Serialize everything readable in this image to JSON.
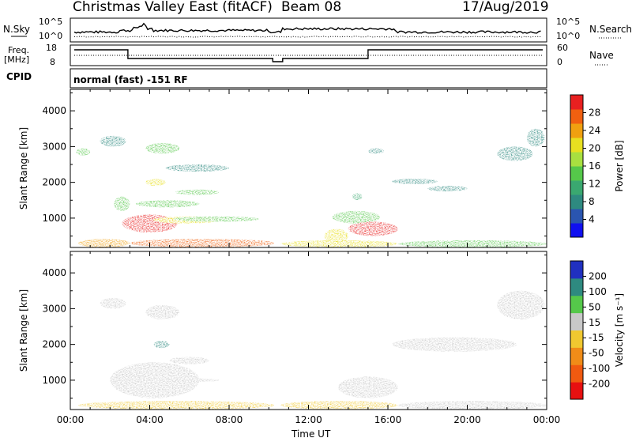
{
  "header": {
    "title": "Christmas Valley East (fitACF)",
    "beam": "Beam 08",
    "date": "17/Aug/2019"
  },
  "top_panels": {
    "nsky_label": "N.Sky",
    "nsearch_label": "N.Search",
    "nsky_ticks": [
      "10^5",
      "10^0"
    ],
    "nsearch_ticks": [
      "10^5",
      "10^0"
    ],
    "freq_label_1": "Freq.",
    "freq_label_2": "[MHz]",
    "freq_ticks": [
      "18",
      "8"
    ],
    "nave_label": "Nave",
    "nave_ticks": [
      "60",
      "0"
    ],
    "cpid_label": "CPID",
    "cpid_value": "normal (fast) -151 RF"
  },
  "colorbars": {
    "power": {
      "label": "Power [dB]",
      "ticks": [
        "28",
        "24",
        "20",
        "16",
        "12",
        "8",
        "4"
      ],
      "colors": [
        "#1010f0",
        "#2a55b0",
        "#2e8a80",
        "#3aa870",
        "#55c84a",
        "#a8e040",
        "#e8e020",
        "#f0a010",
        "#f06010",
        "#e82020"
      ]
    },
    "velocity": {
      "label": "Velocity [m s⁻¹]",
      "ticks": [
        "200",
        "100",
        "50",
        "15",
        "-15",
        "-50",
        "-100",
        "-200"
      ],
      "colors": [
        "#2030c0",
        "#2e8a80",
        "#55c84a",
        "#c8c8c8",
        "#f0c830",
        "#f08c18",
        "#f05a10",
        "#e81010"
      ]
    }
  },
  "chart_data": [
    {
      "type": "heatmap",
      "name": "power",
      "ylabel": "Slant Range [km]",
      "y_ticks": [
        "1000",
        "2000",
        "3000",
        "4000"
      ],
      "ylim": [
        180,
        4600
      ],
      "xlim": [
        0,
        24
      ],
      "x_ticks": [
        "00:00",
        "04:00",
        "08:00",
        "12:00",
        "16:00",
        "20:00",
        "00:00"
      ],
      "colorbar_range": [
        0,
        30
      ],
      "regions": [
        {
          "t": [
            0.4,
            3.0
          ],
          "r": [
            180,
            420
          ],
          "value": 22
        },
        {
          "t": [
            3.0,
            10.3
          ],
          "r": [
            180,
            420
          ],
          "value": 26
        },
        {
          "t": [
            10.6,
            16.5
          ],
          "r": [
            180,
            380
          ],
          "value": 20
        },
        {
          "t": [
            16.5,
            24.0
          ],
          "r": [
            180,
            380
          ],
          "value": 14
        },
        {
          "t": [
            2.6,
            5.4
          ],
          "r": [
            600,
            1100
          ],
          "value": 28
        },
        {
          "t": [
            2.2,
            3.0
          ],
          "r": [
            1200,
            1600
          ],
          "value": 14
        },
        {
          "t": [
            3.3,
            6.5
          ],
          "r": [
            1300,
            1500
          ],
          "value": 12
        },
        {
          "t": [
            4.2,
            7.5
          ],
          "r": [
            850,
            1050
          ],
          "value": 18
        },
        {
          "t": [
            5.2,
            9.5
          ],
          "r": [
            900,
            1050
          ],
          "value": 14
        },
        {
          "t": [
            3.8,
            4.8
          ],
          "r": [
            1900,
            2100
          ],
          "value": 18
        },
        {
          "t": [
            5.3,
            7.5
          ],
          "r": [
            1650,
            1800
          ],
          "value": 12
        },
        {
          "t": [
            1.5,
            2.8
          ],
          "r": [
            3000,
            3300
          ],
          "value": 8
        },
        {
          "t": [
            3.8,
            5.5
          ],
          "r": [
            2800,
            3100
          ],
          "value": 12
        },
        {
          "t": [
            4.8,
            8.0
          ],
          "r": [
            2300,
            2500
          ],
          "value": 8
        },
        {
          "t": [
            0.3,
            1.0
          ],
          "r": [
            2750,
            2950
          ],
          "value": 12
        },
        {
          "t": [
            13.2,
            15.6
          ],
          "r": [
            850,
            1200
          ],
          "value": 14
        },
        {
          "t": [
            14.0,
            16.5
          ],
          "r": [
            500,
            900
          ],
          "value": 28
        },
        {
          "t": [
            12.8,
            14.0
          ],
          "r": [
            300,
            700
          ],
          "value": 20
        },
        {
          "t": [
            14.2,
            14.7
          ],
          "r": [
            1500,
            1700
          ],
          "value": 10
        },
        {
          "t": [
            15.0,
            15.8
          ],
          "r": [
            2800,
            2950
          ],
          "value": 8
        },
        {
          "t": [
            16.2,
            18.5
          ],
          "r": [
            1950,
            2100
          ],
          "value": 8
        },
        {
          "t": [
            18.0,
            20.0
          ],
          "r": [
            1750,
            1900
          ],
          "value": 8
        },
        {
          "t": [
            21.5,
            23.3
          ],
          "r": [
            2600,
            3000
          ],
          "value": 6
        },
        {
          "t": [
            23.0,
            23.9
          ],
          "r": [
            3000,
            3500
          ],
          "value": 8
        }
      ]
    },
    {
      "type": "heatmap",
      "name": "velocity",
      "ylabel": "Slant Range [km]",
      "y_ticks": [
        "1000",
        "2000",
        "3000",
        "4000"
      ],
      "ylim": [
        180,
        4600
      ],
      "xlim": [
        0,
        24
      ],
      "x_ticks": [
        "00:00",
        "04:00",
        "08:00",
        "12:00",
        "16:00",
        "20:00",
        "00:00"
      ],
      "xlabel": "Time UT",
      "colorbar_range": [
        -250,
        250
      ],
      "regions": [
        {
          "t": [
            0.4,
            10.3
          ],
          "r": [
            180,
            420
          ],
          "value": -10
        },
        {
          "t": [
            10.6,
            16.5
          ],
          "r": [
            180,
            420
          ],
          "value": -60
        },
        {
          "t": [
            16.5,
            24.0
          ],
          "r": [
            180,
            420
          ],
          "value": 40
        },
        {
          "t": [
            2.0,
            6.5
          ],
          "r": [
            500,
            1500
          ],
          "value": 0
        },
        {
          "t": [
            2.0,
            4.0
          ],
          "r": [
            900,
            1200
          ],
          "value": 40
        },
        {
          "t": [
            4.5,
            7.5
          ],
          "r": [
            950,
            1050
          ],
          "value": 40
        },
        {
          "t": [
            5.0,
            7.0
          ],
          "r": [
            1450,
            1650
          ],
          "value": 40
        },
        {
          "t": [
            4.2,
            5.0
          ],
          "r": [
            1900,
            2100
          ],
          "value": 150
        },
        {
          "t": [
            1.5,
            2.8
          ],
          "r": [
            3000,
            3300
          ],
          "value": 0
        },
        {
          "t": [
            3.8,
            5.5
          ],
          "r": [
            2700,
            3100
          ],
          "value": 0
        },
        {
          "t": [
            13.5,
            16.5
          ],
          "r": [
            500,
            1100
          ],
          "value": 0
        },
        {
          "t": [
            16.2,
            22.5
          ],
          "r": [
            1800,
            2200
          ],
          "value": 0
        },
        {
          "t": [
            21.5,
            23.9
          ],
          "r": [
            2700,
            3500
          ],
          "value": 0
        }
      ]
    }
  ]
}
